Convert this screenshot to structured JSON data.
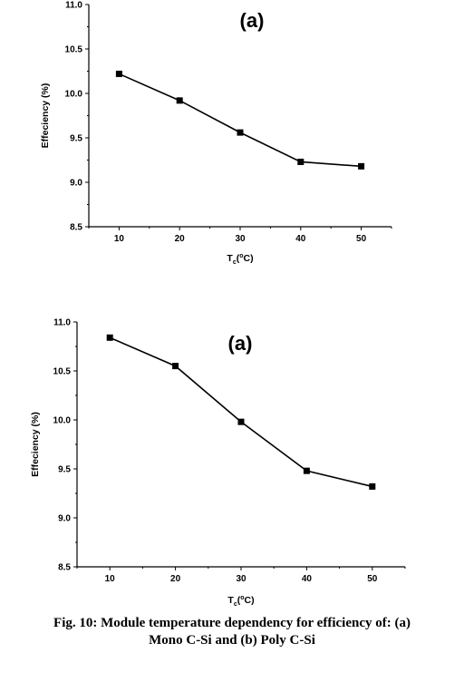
{
  "chart_data": [
    {
      "type": "line",
      "panel_label": "(a)",
      "ylabel": "Effeciency (%)",
      "xlabel_main": "T",
      "xlabel_sub": "c",
      "xlabel_paren": "(",
      "xlabel_sup": "o",
      "xlabel_unit": "C)",
      "xlim": [
        5,
        55
      ],
      "ylim": [
        8.5,
        11.0
      ],
      "xticks": [
        "10",
        "20",
        "30",
        "40",
        "50"
      ],
      "yticks": [
        "8.5",
        "9.0",
        "9.5",
        "10.0",
        "10.5",
        "11.0"
      ],
      "x": [
        10,
        20,
        30,
        40,
        50
      ],
      "series": [
        {
          "values": [
            10.22,
            9.92,
            9.56,
            9.23,
            9.18
          ]
        }
      ]
    },
    {
      "type": "line",
      "panel_label": "(a)",
      "ylabel": "Effeciency (%)",
      "xlabel_main": "T",
      "xlabel_sub": "c",
      "xlabel_paren": "(",
      "xlabel_sup": "o",
      "xlabel_unit": "C)",
      "xlim": [
        5,
        55
      ],
      "ylim": [
        8.5,
        11.0
      ],
      "xticks": [
        "10",
        "20",
        "30",
        "40",
        "50"
      ],
      "yticks": [
        "8.5",
        "9.0",
        "9.5",
        "10.0",
        "10.5",
        "11.0"
      ],
      "x": [
        10,
        20,
        30,
        40,
        50
      ],
      "series": [
        {
          "values": [
            10.84,
            10.55,
            9.98,
            9.48,
            9.32
          ]
        }
      ]
    }
  ],
  "caption": {
    "line1": "Fig. 10: Module temperature dependency for efficiency of: (a)",
    "line2": "Mono C-Si and (b) Poly C-Si"
  }
}
